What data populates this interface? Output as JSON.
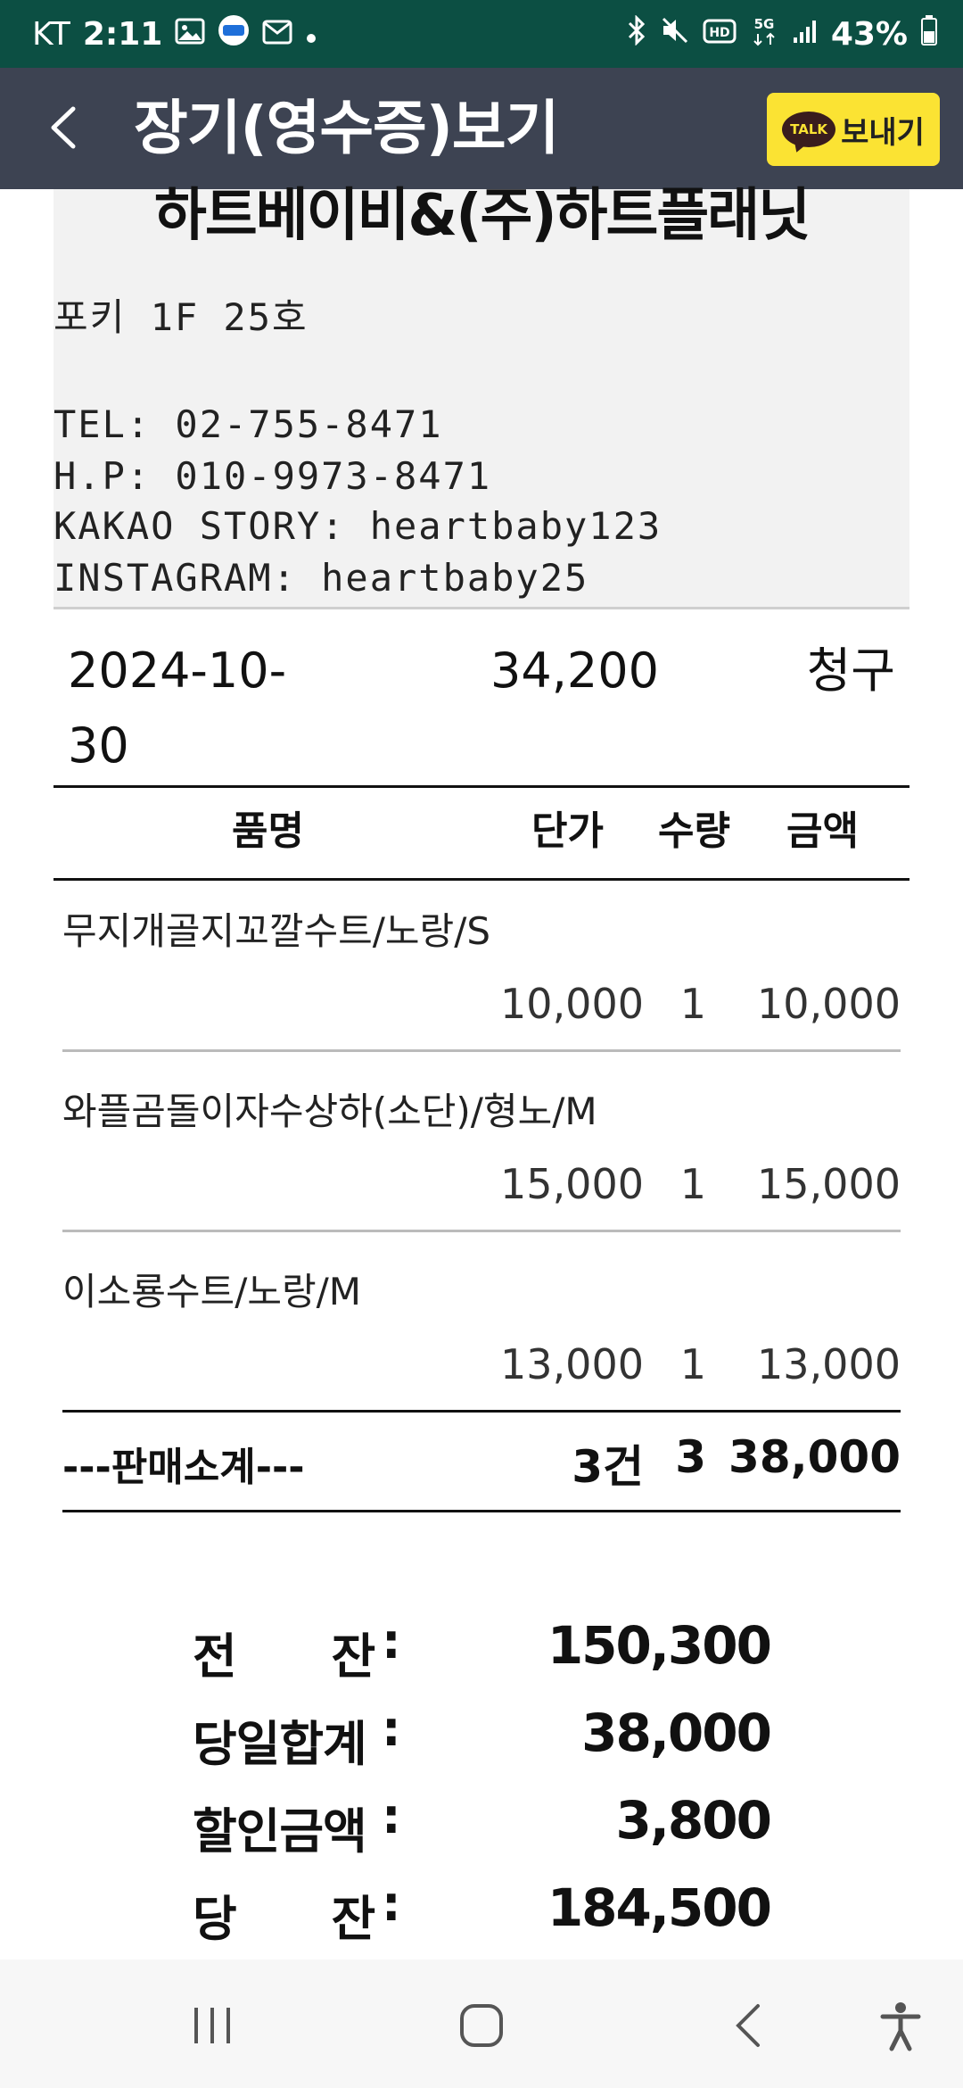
{
  "status_bar": {
    "carrier": "KT",
    "time": "2:11",
    "battery_pct": "43%",
    "network": "5G"
  },
  "app_bar": {
    "title": "장기(영수증)보기",
    "talk_badge": "TALK",
    "send_label": "보내기"
  },
  "shop": {
    "name": "하트베이비&(주)하트플래닛",
    "location": "포키 1F 25호",
    "tel": "TEL: 02-755-8471",
    "hp": "H.P: 010-9973-8471",
    "kakao": "KAKAO STORY: heartbaby123",
    "instagram": "INSTAGRAM: heartbaby25"
  },
  "receipt": {
    "date_line1": "2024-10-",
    "date_line2": "30",
    "total": "34,200",
    "type": "청구"
  },
  "table": {
    "headers": {
      "name": "품명",
      "price": "단가",
      "qty": "수량",
      "amount": "금액"
    },
    "items": [
      {
        "name": "무지개골지꼬깔수트/노랑/S",
        "price": "10,000",
        "qty": "1",
        "amount": "10,000"
      },
      {
        "name": "와플곰돌이자수상하(소단)/형노/M",
        "price": "15,000",
        "qty": "1",
        "amount": "15,000"
      },
      {
        "name": "이소룡수트/노랑/M",
        "price": "13,000",
        "qty": "1",
        "amount": "13,000"
      }
    ],
    "subtotal": {
      "label": "---판매소계---",
      "count": "3건",
      "qty": "3",
      "amount": "38,000"
    }
  },
  "summary": {
    "colon": ":",
    "rows": [
      {
        "label": "전      잔",
        "value": "150,300"
      },
      {
        "label": "당일합계",
        "value": "38,000"
      },
      {
        "label": "할인금액",
        "value": "3,800"
      },
      {
        "label": "당      잔",
        "value": "184,500"
      }
    ]
  },
  "colors": {
    "status_bar": "#0c4f43",
    "app_bar": "#3d4352",
    "kakao_yellow": "#fbe333",
    "header_bg": "#f2f2f2"
  }
}
